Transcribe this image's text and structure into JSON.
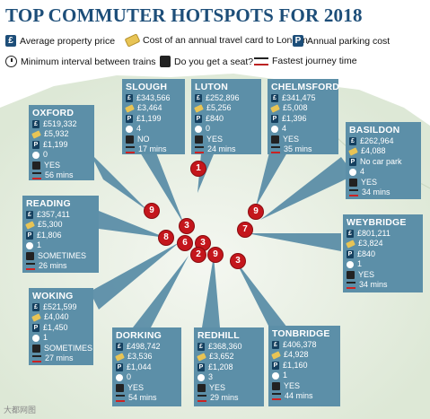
{
  "title": "TOP COMMUTER HOTSPOTS FOR 2018",
  "legend": [
    {
      "icon": "pound-note-icon",
      "label": "Average property price"
    },
    {
      "icon": "travel-card-icon",
      "label": "Cost of an annual travel card to London"
    },
    {
      "icon": "parking-icon",
      "label": "Annual parking cost"
    },
    {
      "icon": "clock-icon",
      "label": "Minimum interval between trains"
    },
    {
      "icon": "seat-icon",
      "label": "Do you get a seat?"
    },
    {
      "icon": "journey-time-icon",
      "label": "Fastest journey time"
    }
  ],
  "towns": {
    "slough": {
      "name": "SLOUGH",
      "price": "£343,566",
      "card": "£3,464",
      "parking": "£1,199",
      "interval": "4",
      "seat": "NO",
      "journey": "17 mins"
    },
    "luton": {
      "name": "LUTON",
      "price": "£252,896",
      "card": "£5,256",
      "parking": "£840",
      "interval": "0",
      "seat": "YES",
      "journey": "24 mins"
    },
    "chelmsford": {
      "name": "CHELMSFORD",
      "price": "£341,475",
      "card": "£5,008",
      "parking": "£1,396",
      "interval": "4",
      "seat": "YES",
      "journey": "35 mins"
    },
    "oxford": {
      "name": "OXFORD",
      "price": "£519,332",
      "card": "£5,932",
      "parking": "£1,199",
      "interval": "0",
      "seat": "YES",
      "journey": "56 mins"
    },
    "basildon": {
      "name": "BASILDON",
      "price": "£262,964",
      "card": "£4,088",
      "parking": "No car park",
      "interval": "4",
      "seat": "YES",
      "journey": "34 mins"
    },
    "reading": {
      "name": "READING",
      "price": "£357,411",
      "card": "£5,300",
      "parking": "£1,806",
      "interval": "1",
      "seat": "SOMETIMES",
      "journey": "26 mins"
    },
    "weybridge": {
      "name": "WEYBRIDGE",
      "price": "£801,211",
      "card": "£3,824",
      "parking": "£840",
      "interval": "1",
      "seat": "YES",
      "journey": "34 mins"
    },
    "woking": {
      "name": "WOKING",
      "price": "£521,599",
      "card": "£4,040",
      "parking": "£1,450",
      "interval": "1",
      "seat": "SOMETIMES",
      "journey": "27 mins"
    },
    "dorking": {
      "name": "DORKING",
      "price": "£498,742",
      "card": "£3,536",
      "parking": "£1,044",
      "interval": "0",
      "seat": "YES",
      "journey": "54 mins"
    },
    "redhill": {
      "name": "REDHILL",
      "price": "£368,360",
      "card": "£3,652",
      "parking": "£1,208",
      "interval": "3",
      "seat": "YES",
      "journey": "29 mins"
    },
    "tonbridge": {
      "name": "TONBRIDGE",
      "price": "£406,378",
      "card": "£4,928",
      "parking": "£1,160",
      "interval": "1",
      "seat": "YES",
      "journey": "44 mins"
    }
  },
  "pins": [
    "1",
    "9",
    "3",
    "8",
    "6",
    "3",
    "2",
    "9",
    "9",
    "7",
    "3"
  ],
  "watermark": "大都网图"
}
